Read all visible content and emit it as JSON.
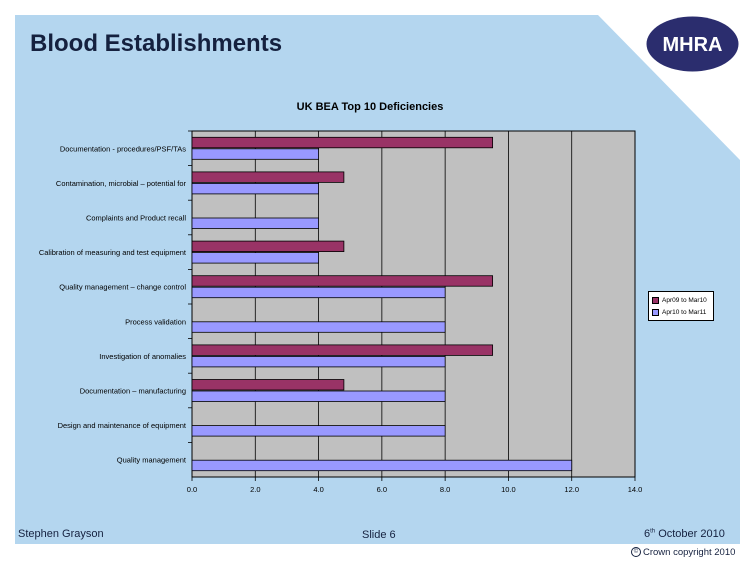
{
  "slide": {
    "title": "Blood Establishments",
    "logo_text": "MHRA",
    "footer_author": "Stephen Grayson",
    "footer_slide": "Slide 6",
    "footer_date_day": "6",
    "footer_date_suffix": "th",
    "footer_date_rest": " October 2010",
    "copyright_symbol": "©",
    "copyright_text": "Crown copyright 2010",
    "colors": {
      "background": "#b4d6ef",
      "plot_area": "#c0c0c0",
      "series1": "#993366",
      "series2": "#9999ff",
      "logo": "#2b2d6e",
      "title": "#15213f"
    }
  },
  "chart_data": {
    "type": "bar",
    "orientation": "horizontal",
    "title": "UK BEA Top 10 Deficiencies",
    "categories": [
      "Documentation - procedures/PSF/TAs",
      "Contamination, microbial – potential for",
      "Complaints and Product recall",
      "Calibration of measuring and test equipment",
      "Quality management – change control",
      "Process validation",
      "Investigation of anomalies",
      "Documentation – manufacturing",
      "Design and maintenance of equipment",
      "Quality management"
    ],
    "series": [
      {
        "name": "Apr09 to Mar10",
        "color": "#993366",
        "values": [
          9.5,
          4.8,
          0,
          4.8,
          9.5,
          0,
          9.5,
          4.8,
          0,
          0
        ]
      },
      {
        "name": "Apr10 to Mar11",
        "color": "#9999ff",
        "values": [
          4.0,
          4.0,
          4.0,
          4.0,
          8.0,
          8.0,
          8.0,
          8.0,
          8.0,
          12.0
        ]
      }
    ],
    "x_ticks": [
      "0.0",
      "2.0",
      "4.0",
      "6.0",
      "8.0",
      "10.0",
      "12.0",
      "14.0"
    ],
    "xlim": [
      0,
      14
    ],
    "grid": "vertical",
    "legend_position": "right"
  }
}
